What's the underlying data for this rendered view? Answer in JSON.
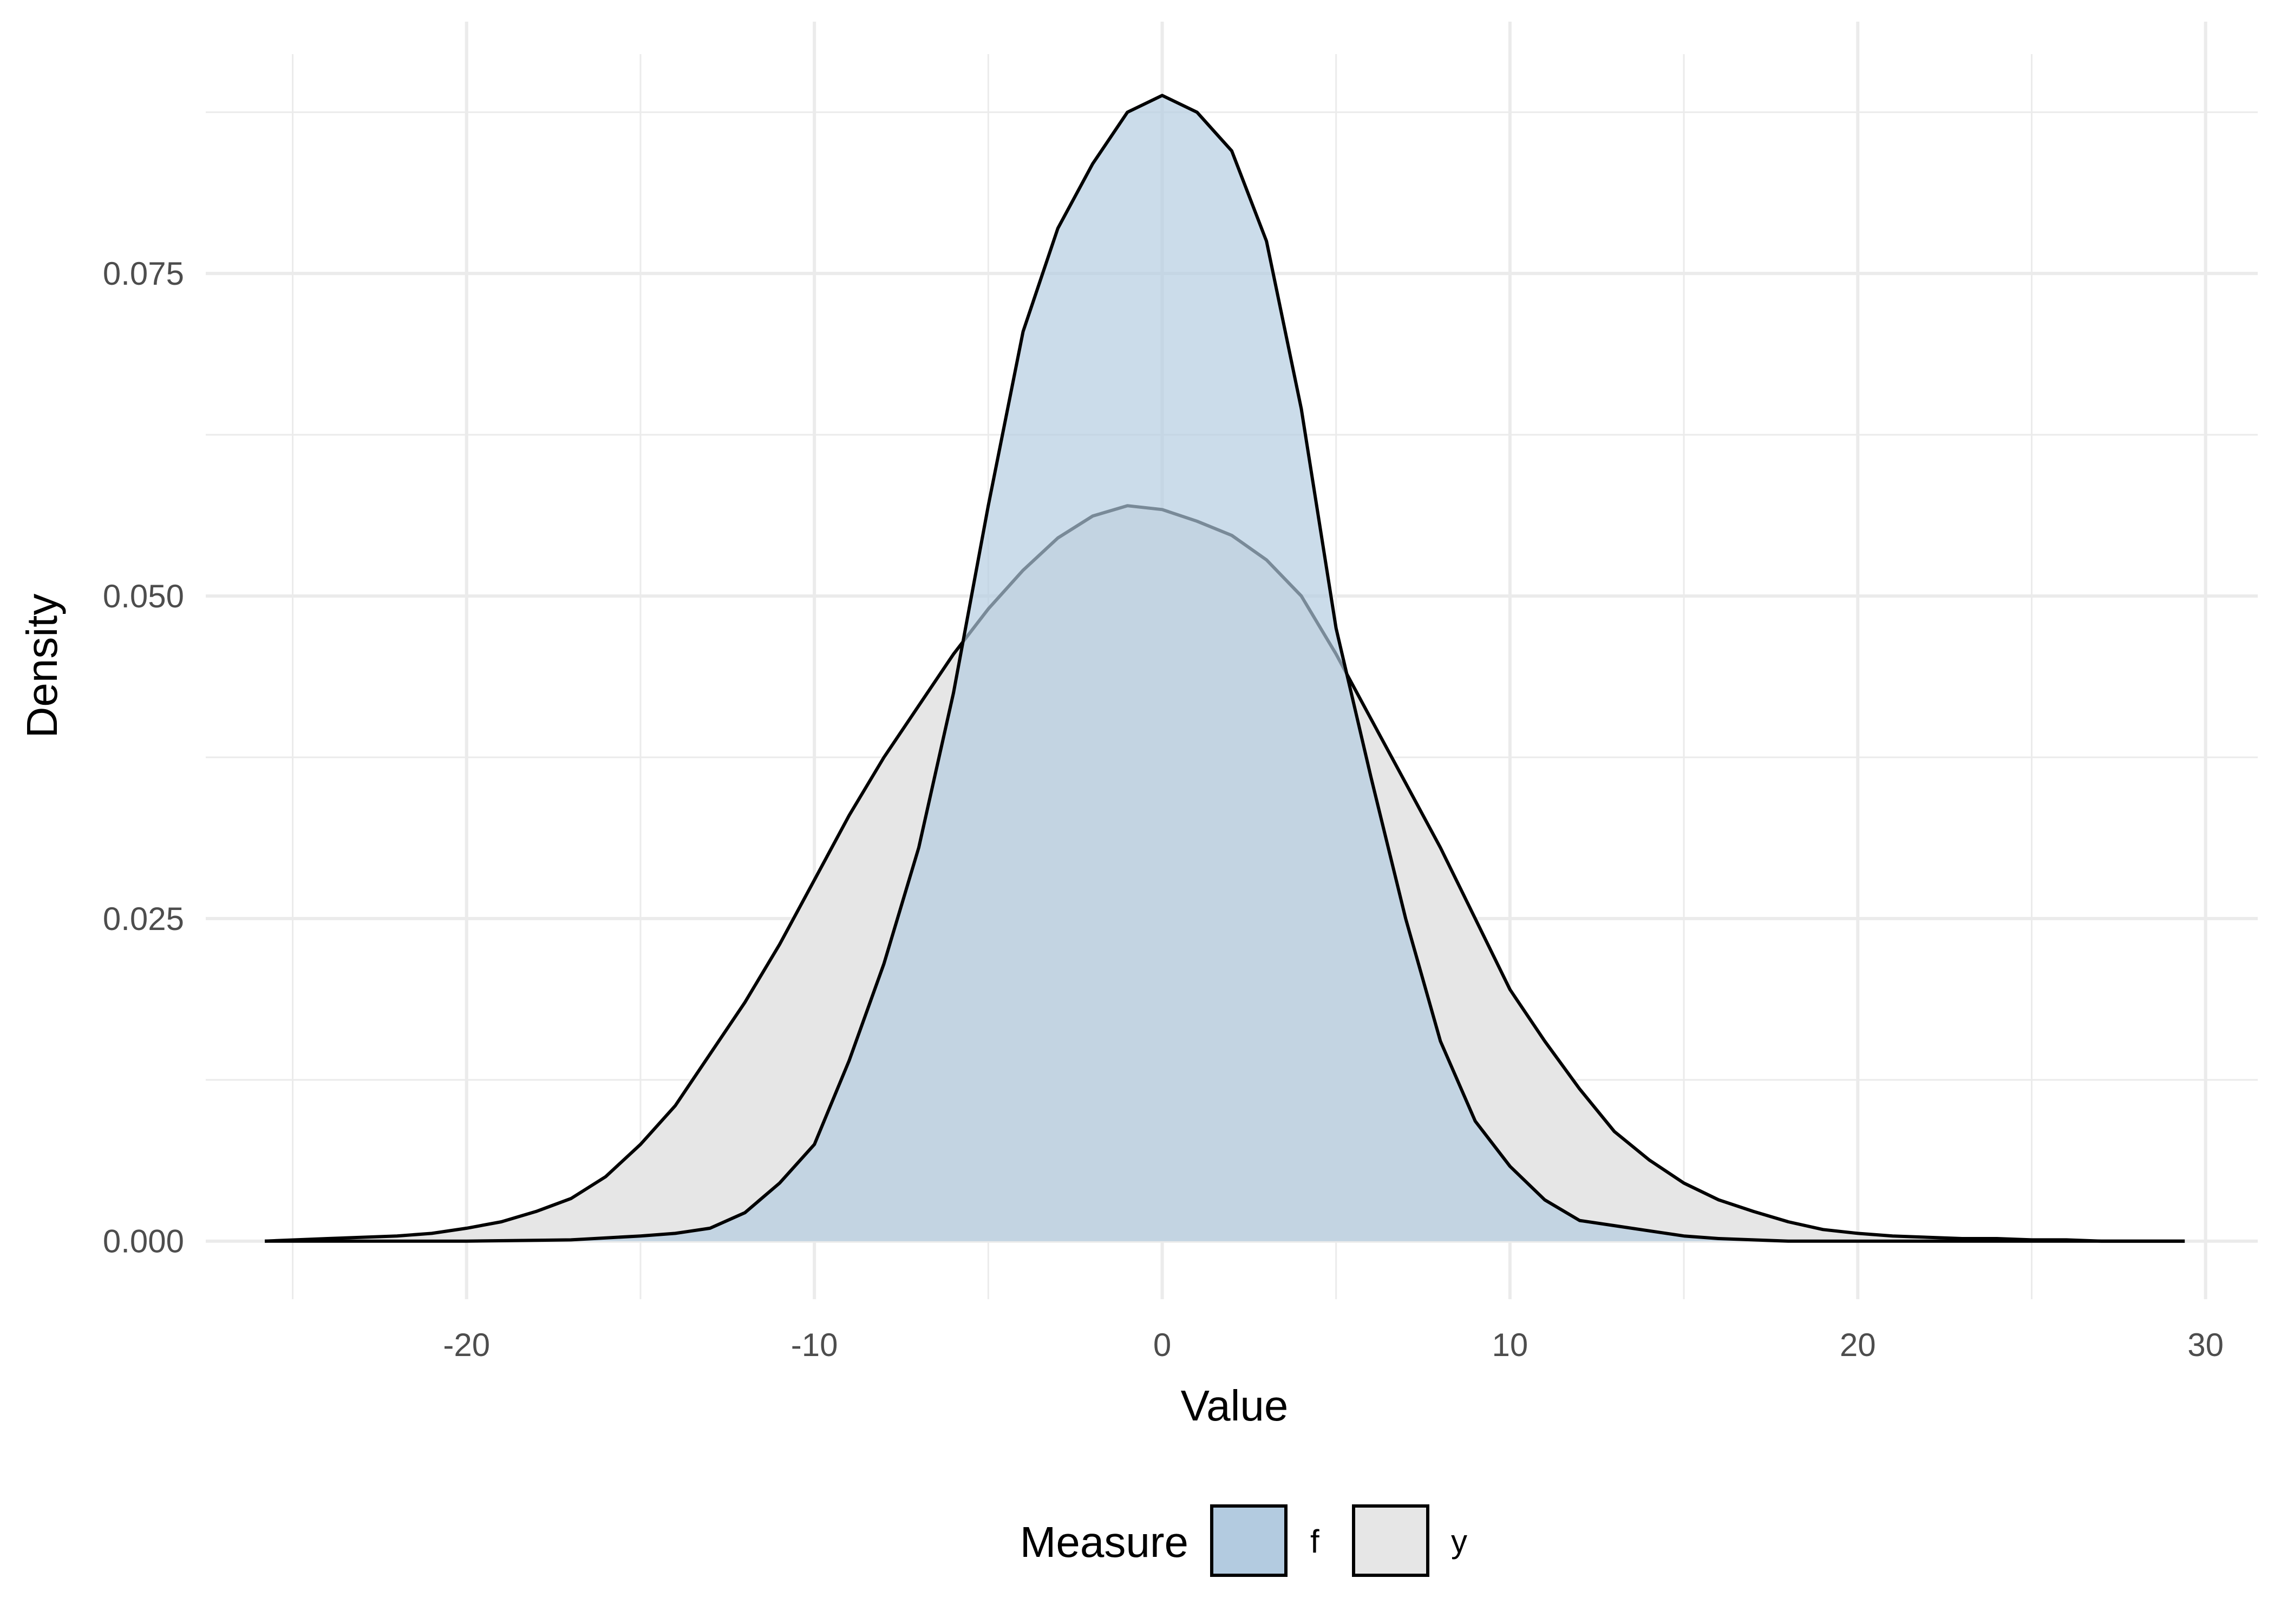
{
  "chart_data": {
    "type": "area",
    "title": "",
    "xlabel": "Value",
    "ylabel": "Density",
    "xlim": [
      -27.5,
      31.5
    ],
    "ylim": [
      -0.0045,
      0.092
    ],
    "x_ticks": [
      -20,
      -10,
      0,
      10,
      20,
      30
    ],
    "x_tick_labels": [
      "-20",
      "-10",
      "0",
      "10",
      "20",
      "30"
    ],
    "y_ticks": [
      0,
      0.025,
      0.05,
      0.075
    ],
    "y_tick_labels": [
      "0.000",
      "0.025",
      "0.050",
      "0.075"
    ],
    "grid": true,
    "legend": {
      "title": "Measure",
      "position": "bottom"
    },
    "series": [
      {
        "name": "y",
        "color": "#e6e6e6",
        "x": [
          -25.8,
          -24,
          -22,
          -21,
          -20,
          -19,
          -18,
          -17,
          -16,
          -15,
          -14,
          -13,
          -12,
          -11,
          -10,
          -9,
          -8,
          -7,
          -6,
          -5,
          -4,
          -3,
          -2,
          -1,
          0,
          1,
          2,
          3,
          4,
          5,
          6,
          7,
          8,
          9,
          10,
          11,
          12,
          13,
          14,
          15,
          16,
          17,
          18,
          19,
          20,
          21,
          22,
          23,
          24,
          25,
          26,
          27,
          28,
          29.4
        ],
        "y": [
          0,
          0.0002,
          0.0004,
          0.0006,
          0.001,
          0.0015,
          0.0023,
          0.0033,
          0.005,
          0.0075,
          0.0105,
          0.0145,
          0.0185,
          0.023,
          0.028,
          0.033,
          0.0375,
          0.0415,
          0.0455,
          0.049,
          0.052,
          0.0545,
          0.0562,
          0.057,
          0.0567,
          0.0558,
          0.0547,
          0.0528,
          0.05,
          0.0455,
          0.0405,
          0.0355,
          0.0305,
          0.025,
          0.0195,
          0.0155,
          0.0118,
          0.0085,
          0.0063,
          0.0045,
          0.0032,
          0.0023,
          0.0015,
          0.0009,
          0.0006,
          0.0004,
          0.0003,
          0.0002,
          0.0002,
          0.0001,
          0.0001,
          0,
          0,
          0
        ]
      },
      {
        "name": "f",
        "color": "#b3cbe0",
        "x": [
          -25.8,
          -20,
          -17,
          -15,
          -14,
          -13,
          -12,
          -11,
          -10,
          -9,
          -8,
          -7,
          -6,
          -5,
          -4,
          -3,
          -2,
          -1,
          0,
          1,
          2,
          3,
          4,
          5,
          6,
          7,
          8,
          9,
          10,
          11,
          12,
          13,
          14,
          15,
          16,
          17,
          18,
          20,
          25,
          29.4
        ],
        "y": [
          0,
          0,
          0.0001,
          0.0004,
          0.0006,
          0.001,
          0.0022,
          0.0045,
          0.0075,
          0.014,
          0.0215,
          0.0305,
          0.0425,
          0.057,
          0.0705,
          0.0785,
          0.0835,
          0.0875,
          0.0888,
          0.0875,
          0.0845,
          0.0775,
          0.0645,
          0.0475,
          0.036,
          0.025,
          0.0155,
          0.0093,
          0.0058,
          0.0032,
          0.0016,
          0.0012,
          0.0008,
          0.0004,
          0.0002,
          0.0001,
          0,
          0,
          0,
          0
        ]
      }
    ]
  }
}
